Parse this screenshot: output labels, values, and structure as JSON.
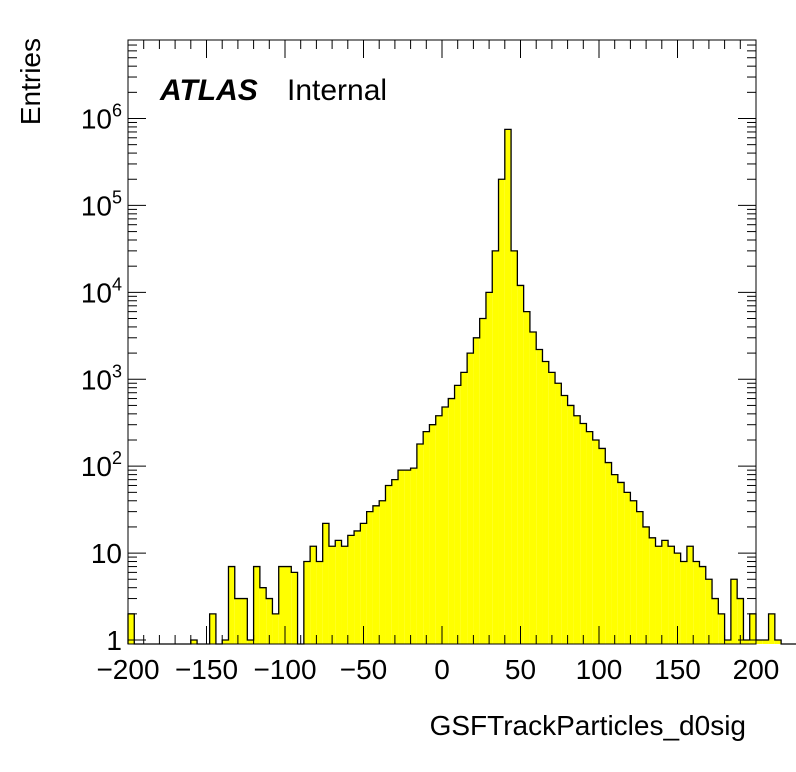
{
  "chart_data": {
    "type": "bar",
    "title": "",
    "xlabel": "GSFTrackParticles_d0sig",
    "ylabel": "Entries",
    "annotation": {
      "brand": "ATLAS",
      "status": "Internal"
    },
    "xlim": [
      -200,
      200
    ],
    "ylim": [
      0.9,
      8000000
    ],
    "yscale": "log",
    "bin_width": 4,
    "x_ticks": [
      "−200",
      "−150",
      "−100",
      "−50",
      "0",
      "50",
      "100",
      "150",
      "200"
    ],
    "y_ticks": [
      {
        "value": 1,
        "base": "1",
        "exp": ""
      },
      {
        "value": 10,
        "base": "10",
        "exp": ""
      },
      {
        "value": 100,
        "base": "10",
        "exp": "2"
      },
      {
        "value": 1000,
        "base": "10",
        "exp": "3"
      },
      {
        "value": 10000,
        "base": "10",
        "exp": "4"
      },
      {
        "value": 100000,
        "base": "10",
        "exp": "5"
      },
      {
        "value": 1000000,
        "base": "10",
        "exp": "6"
      }
    ],
    "fill_color": "#ffff00",
    "line_color": "#000000",
    "bin_edges_start": -200,
    "values": [
      2,
      0,
      0,
      0,
      0,
      0,
      0,
      0,
      0,
      0,
      1,
      0,
      0,
      2,
      0,
      1,
      7,
      3,
      3,
      1,
      7,
      4,
      3,
      2,
      7,
      7,
      6,
      0,
      8,
      12,
      8,
      22,
      12,
      14,
      12,
      16,
      18,
      22,
      30,
      35,
      40,
      60,
      70,
      90,
      90,
      95,
      180,
      250,
      300,
      380,
      480,
      600,
      850,
      1200,
      2000,
      3000,
      5000,
      10000,
      30000,
      200000,
      750000,
      30000,
      12000,
      6000,
      3500,
      2200,
      1600,
      1200,
      900,
      650,
      500,
      380,
      310,
      250,
      200,
      160,
      110,
      80,
      65,
      50,
      40,
      30,
      20,
      15,
      12,
      14,
      12,
      10,
      8,
      12,
      8,
      7,
      5,
      3,
      2,
      1,
      5,
      3,
      1,
      2,
      1,
      1,
      2,
      1,
      0,
      0,
      0,
      0,
      0,
      0,
      0,
      0,
      1
    ]
  }
}
